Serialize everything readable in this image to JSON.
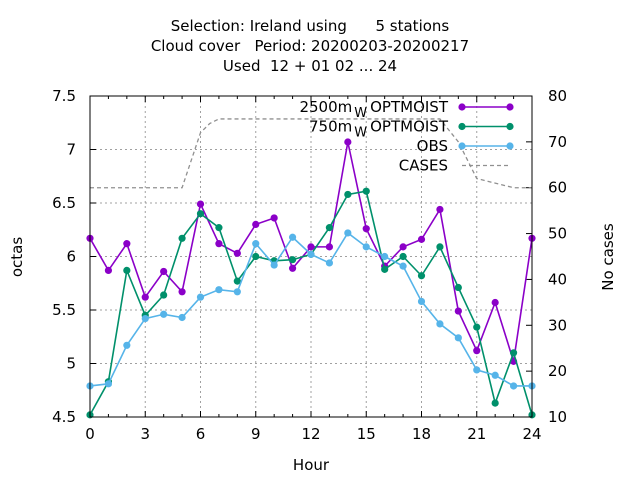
{
  "chart_data": {
    "type": "line",
    "title_lines": [
      "Selection: Ireland using      5 stations",
      "Cloud cover   Period: 20200203-20200217",
      "Used  12 + 01 02 ... 24"
    ],
    "xlabel": "Hour",
    "ylabel": "octas",
    "y2label": "No cases",
    "xlim": [
      0,
      24
    ],
    "ylim": [
      4.5,
      7.5
    ],
    "y2lim": [
      10,
      80
    ],
    "xticks": [
      0,
      3,
      6,
      9,
      12,
      15,
      18,
      21,
      24
    ],
    "yticks": [
      "4.5",
      "5",
      "5.5",
      "6",
      "6.5",
      "7",
      "7.5"
    ],
    "y2ticks": [
      "10",
      "20",
      "30",
      "40",
      "50",
      "60",
      "70",
      "80"
    ],
    "grid": true,
    "legend_position": "top-right",
    "x": [
      0,
      1,
      2,
      3,
      4,
      5,
      6,
      7,
      8,
      9,
      10,
      11,
      12,
      13,
      14,
      15,
      16,
      17,
      18,
      19,
      20,
      21,
      22,
      23,
      24
    ],
    "series": [
      {
        "name": "2500m_W OPTMOIST",
        "label_main": "2500m",
        "label_sub": "W",
        "label_tail": "OPTMOIST",
        "color": "#8b00c8",
        "axis": "y",
        "values": [
          6.17,
          5.87,
          6.12,
          5.62,
          5.86,
          5.67,
          6.49,
          6.12,
          6.03,
          6.3,
          6.36,
          5.89,
          6.09,
          6.09,
          7.07,
          6.26,
          5.91,
          6.09,
          6.16,
          6.44,
          5.49,
          5.12,
          5.57,
          5.02,
          6.17
        ]
      },
      {
        "name": "750m_W OPTMOIST",
        "label_main": "750m",
        "label_sub": "W",
        "label_tail": "OPTMOIST",
        "color": "#00906b",
        "axis": "y",
        "values": [
          4.52,
          4.83,
          5.87,
          5.45,
          5.64,
          6.17,
          6.4,
          6.27,
          5.77,
          6.0,
          5.96,
          5.97,
          6.02,
          6.27,
          6.58,
          6.61,
          5.88,
          6.0,
          5.82,
          6.09,
          5.71,
          5.34,
          4.63,
          5.1,
          4.52
        ]
      },
      {
        "name": "OBS",
        "label_main": "OBS",
        "label_sub": "",
        "label_tail": "",
        "color": "#56b4e9",
        "axis": "y",
        "values": [
          4.79,
          4.81,
          5.17,
          5.42,
          5.46,
          5.43,
          5.62,
          5.69,
          5.67,
          6.12,
          5.92,
          6.18,
          6.02,
          5.94,
          6.22,
          6.09,
          6.0,
          5.91,
          5.58,
          5.37,
          5.24,
          4.94,
          4.89,
          4.79,
          4.79
        ]
      },
      {
        "name": "CASES",
        "label_main": "CASES",
        "label_sub": "",
        "label_tail": "",
        "color": "#909090",
        "axis": "y2",
        "dashed": true,
        "x": [
          0,
          0.5,
          1,
          2,
          3,
          4,
          5,
          5.5,
          6,
          6.5,
          7,
          8,
          9,
          10,
          11,
          12,
          13,
          14,
          15,
          16,
          17,
          18,
          19,
          20,
          20.5,
          21,
          22,
          23,
          24
        ],
        "values": [
          60,
          60,
          60,
          60,
          60,
          60,
          60,
          66,
          72,
          74,
          75,
          75,
          75,
          75,
          75,
          75,
          75,
          75,
          75,
          75,
          75,
          75,
          75,
          70,
          66,
          62,
          61,
          60,
          60
        ]
      }
    ]
  }
}
